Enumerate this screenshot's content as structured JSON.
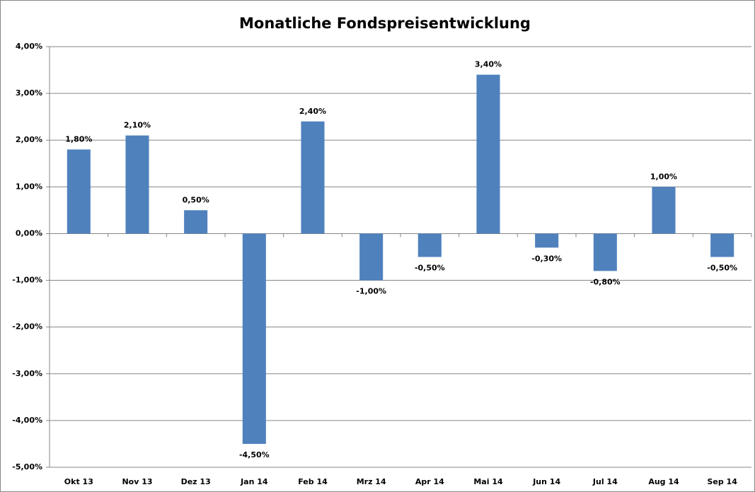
{
  "chart_data": {
    "type": "bar",
    "title": "Monatliche Fondspreisentwicklung",
    "categories": [
      "Okt 13",
      "Nov 13",
      "Dez 13",
      "Jan 14",
      "Feb 14",
      "Mrz 14",
      "Apr 14",
      "Mai 14",
      "Jun 14",
      "Jul 14",
      "Aug 14",
      "Sep 14"
    ],
    "values": [
      1.8,
      2.1,
      0.5,
      -4.5,
      2.4,
      -1.0,
      -0.5,
      3.4,
      -0.3,
      -0.8,
      1.0,
      -0.5
    ],
    "value_labels": [
      "1,80%",
      "2,10%",
      "0,50%",
      "-4,50%",
      "2,40%",
      "-1,00%",
      "-0,50%",
      "3,40%",
      "-0,30%",
      "-0,80%",
      "1,00%",
      "-0,50%"
    ],
    "color": "#4f81bd",
    "ylim": [
      -5,
      4
    ],
    "yticks": [
      {
        "value": -5,
        "label": "-5,00%"
      },
      {
        "value": -4,
        "label": "-4,00%"
      },
      {
        "value": -3,
        "label": "-3,00%"
      },
      {
        "value": -2,
        "label": "-2,00%"
      },
      {
        "value": -1,
        "label": "-1,00%"
      },
      {
        "value": 0,
        "label": "0,00%"
      },
      {
        "value": 1,
        "label": "1,00%"
      },
      {
        "value": 2,
        "label": "2,00%"
      },
      {
        "value": 3,
        "label": "3,00%"
      },
      {
        "value": 4,
        "label": "4,00%"
      }
    ],
    "grid": true
  }
}
